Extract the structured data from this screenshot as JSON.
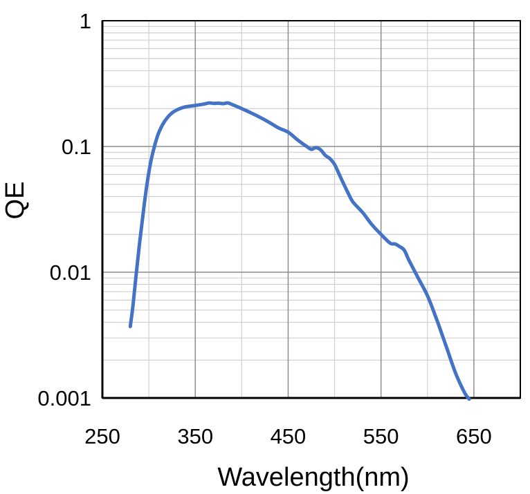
{
  "chart_data": {
    "type": "line",
    "title": "",
    "xlabel": "Wavelength(nm)",
    "ylabel": "QE",
    "xlim": [
      250,
      700
    ],
    "ylim": [
      0.001,
      1
    ],
    "yscale": "log",
    "grid": true,
    "legend": "none",
    "x_ticks": [
      250,
      350,
      450,
      550,
      650
    ],
    "x_tick_labels": [
      "250",
      "350",
      "450",
      "550",
      "650"
    ],
    "y_ticks": [
      0.001,
      0.01,
      0.1,
      1
    ],
    "y_tick_labels": [
      "0.001",
      "0.01",
      "0.1",
      "1"
    ],
    "series": [
      {
        "color": "#4472c4",
        "x": [
          280,
          283,
          286,
          290,
          294,
          298,
          302,
          306,
          310,
          315,
          320,
          325,
          330,
          335,
          340,
          350,
          360,
          365,
          370,
          375,
          380,
          385,
          390,
          400,
          410,
          420,
          430,
          440,
          450,
          460,
          470,
          475,
          480,
          485,
          490,
          495,
          500,
          505,
          510,
          515,
          520,
          530,
          540,
          550,
          560,
          565,
          570,
          575,
          580,
          590,
          600,
          610,
          620,
          630,
          640,
          645
        ],
        "values": [
          0.0037,
          0.0055,
          0.009,
          0.017,
          0.03,
          0.05,
          0.075,
          0.1,
          0.125,
          0.15,
          0.17,
          0.185,
          0.195,
          0.202,
          0.207,
          0.212,
          0.218,
          0.222,
          0.22,
          0.221,
          0.219,
          0.222,
          0.215,
          0.2,
          0.185,
          0.17,
          0.155,
          0.14,
          0.13,
          0.113,
          0.1,
          0.095,
          0.098,
          0.094,
          0.085,
          0.08,
          0.072,
          0.06,
          0.05,
          0.042,
          0.036,
          0.03,
          0.024,
          0.02,
          0.017,
          0.0168,
          0.016,
          0.015,
          0.0125,
          0.009,
          0.0065,
          0.0042,
          0.0026,
          0.0016,
          0.0011,
          0.00098
        ]
      }
    ]
  }
}
